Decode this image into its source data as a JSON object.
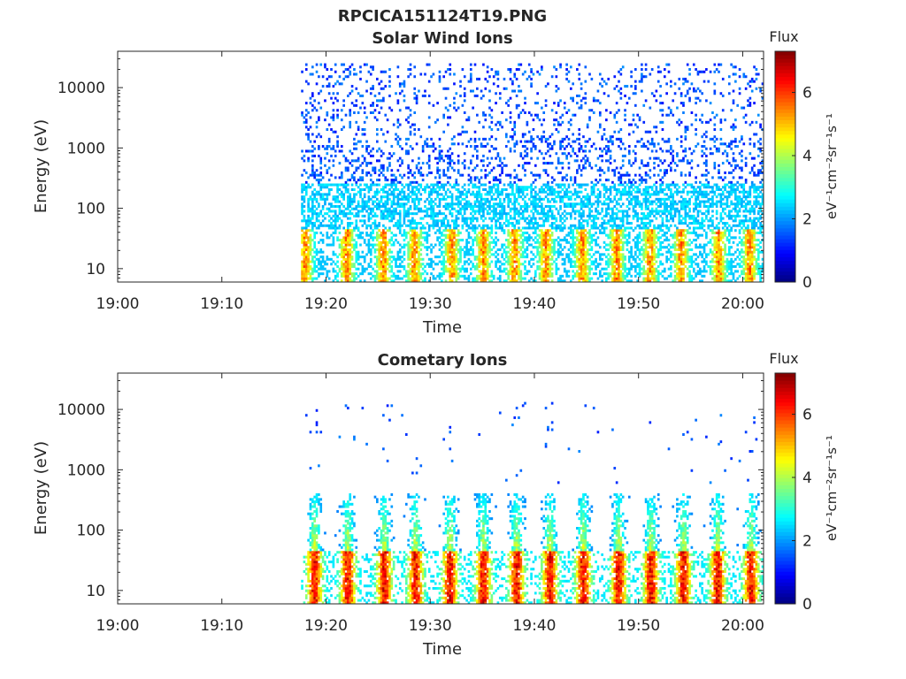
{
  "figure": {
    "title": "RPCICA151124T19.PNG"
  },
  "colormap": "jet",
  "chart_data": [
    {
      "type": "heatmap",
      "title": "Solar Wind Ions",
      "xlabel": "Time",
      "ylabel": "Energy (eV)",
      "x_ticks": [
        "19:00",
        "19:10",
        "19:20",
        "19:30",
        "19:40",
        "19:50",
        "20:00"
      ],
      "xlim": [
        "19:00",
        "20:02"
      ],
      "y_scale": "log",
      "y_ticks": [
        10,
        100,
        1000,
        10000
      ],
      "ylim": [
        6,
        40000
      ],
      "colorbar": {
        "label": "Flux",
        "unit": "eV⁻¹cm⁻²sr⁻¹s⁻¹",
        "ticks": [
          0,
          2,
          4,
          6
        ],
        "range": [
          0,
          7.3
        ]
      },
      "data_start": "19:17.6",
      "data_end": "20:02.0",
      "bursts_minutes": [
        17.9,
        21.9,
        25.4,
        28.4,
        32.0,
        35.0,
        38.0,
        41.0,
        44.5,
        47.8,
        51.0,
        54.0,
        57.6,
        60.6
      ],
      "burst_energy_range_eV": [
        6,
        45
      ],
      "burst_peak_flux": 6.0,
      "background_energy_range_eV": [
        40,
        25000
      ],
      "background_flux_range": [
        1.0,
        2.6
      ]
    },
    {
      "type": "heatmap",
      "title": "Cometary Ions",
      "xlabel": "Time",
      "ylabel": "Energy (eV)",
      "x_ticks": [
        "19:00",
        "19:10",
        "19:20",
        "19:30",
        "19:40",
        "19:50",
        "20:00"
      ],
      "xlim": [
        "19:00",
        "20:02"
      ],
      "y_scale": "log",
      "y_ticks": [
        10,
        100,
        1000,
        10000
      ],
      "ylim": [
        6,
        40000
      ],
      "colorbar": {
        "label": "Flux",
        "unit": "eV⁻¹cm⁻²sr⁻¹s⁻¹",
        "ticks": [
          0,
          2,
          4,
          6
        ],
        "range": [
          0,
          7.3
        ]
      },
      "data_start": "19:17.6",
      "data_end": "20:02.0",
      "bursts_minutes": [
        18.8,
        22.0,
        25.5,
        28.5,
        31.8,
        35.0,
        38.2,
        41.4,
        44.6,
        48.0,
        51.1,
        54.2,
        57.5,
        60.7
      ],
      "burst_energy_range_eV": [
        6,
        45
      ],
      "burst_peak_flux": 7.0,
      "spike_energy_range_eV": [
        45,
        400
      ],
      "sparse_high_energy_eV": [
        600,
        13000
      ]
    }
  ]
}
